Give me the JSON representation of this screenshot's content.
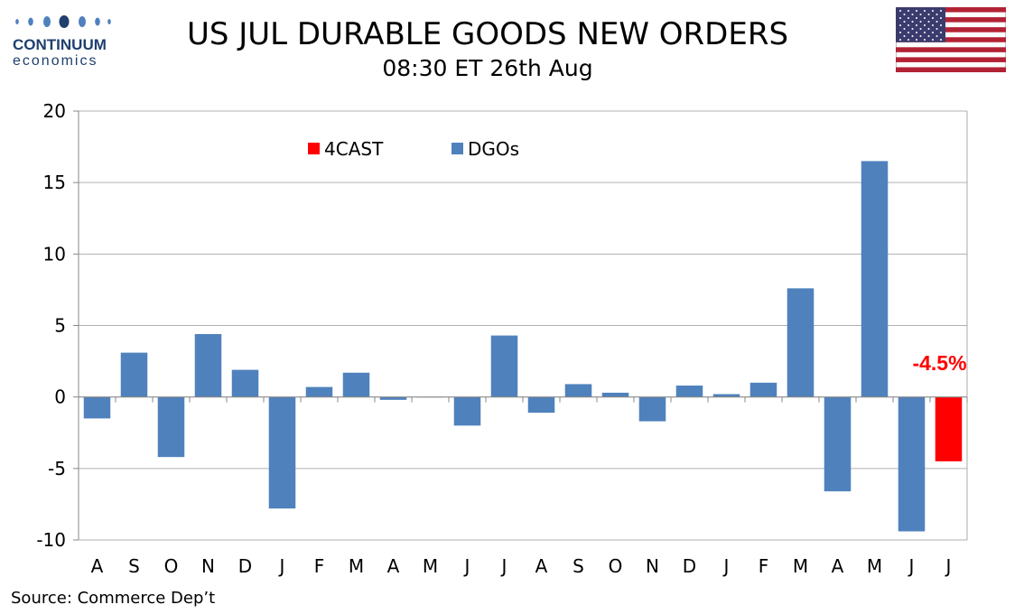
{
  "logo": {
    "brand": "CONTINUUM",
    "sub": "economics"
  },
  "header": {
    "title": "US JUL DURABLE GOODS NEW ORDERS",
    "subtitle": "08:30 ET 26th Aug"
  },
  "source": "Source: Commerce Dep’t",
  "colors": {
    "dgos": "#4f81bd",
    "forecast": "#ff0000",
    "grid": "#b0b0b0"
  },
  "chart_data": {
    "type": "bar",
    "ylim": [
      -10,
      20
    ],
    "yticks": [
      "20",
      "15",
      "10",
      "5",
      "0",
      "-5",
      "-10"
    ],
    "ytick_values": [
      20,
      15,
      10,
      5,
      0,
      -5,
      -10
    ],
    "grid": true,
    "legend_placement": "top-left",
    "categories": [
      "A",
      "S",
      "O",
      "N",
      "D",
      "J",
      "F",
      "M",
      "A",
      "M",
      "J",
      "J",
      "A",
      "S",
      "O",
      "N",
      "D",
      "J",
      "F",
      "M",
      "A",
      "M",
      "J",
      "J"
    ],
    "series": [
      {
        "name": "4CAST",
        "color": "#ff0000",
        "values": [
          null,
          null,
          null,
          null,
          null,
          null,
          null,
          null,
          null,
          null,
          null,
          null,
          null,
          null,
          null,
          null,
          null,
          null,
          null,
          null,
          null,
          null,
          null,
          -4.5
        ]
      },
      {
        "name": "DGOs",
        "color": "#4f81bd",
        "values": [
          -1.5,
          3.1,
          -4.2,
          4.4,
          1.9,
          -7.8,
          0.7,
          1.7,
          -0.2,
          0.0,
          -2.0,
          4.3,
          -1.1,
          0.9,
          0.3,
          -1.7,
          0.8,
          0.2,
          1.0,
          7.6,
          -6.6,
          16.5,
          -9.4,
          null
        ]
      }
    ],
    "annotation": {
      "text": "-4.5%",
      "color": "#ff0000"
    }
  }
}
